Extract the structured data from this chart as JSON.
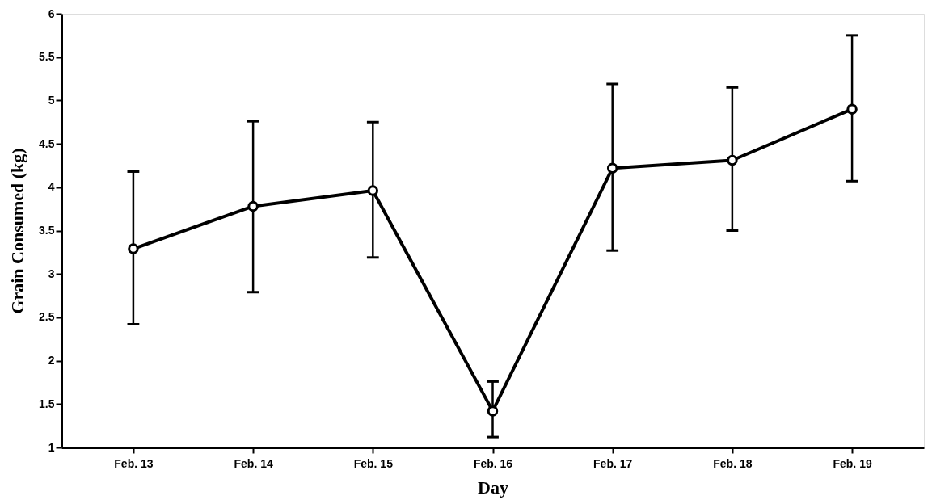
{
  "chart_data": {
    "type": "line",
    "xlabel": "Day",
    "ylabel": "Grain Consumed (kg)",
    "categories": [
      "Feb. 13",
      "Feb. 14",
      "Feb. 15",
      "Feb. 16",
      "Feb. 17",
      "Feb. 18",
      "Feb. 19"
    ],
    "series": [
      {
        "color": "#000000",
        "values": [
          3.29,
          3.78,
          3.96,
          1.42,
          4.22,
          4.31,
          4.9
        ],
        "errors": [
          [
            2.42,
            4.18
          ],
          [
            2.79,
            4.76
          ],
          [
            3.19,
            4.75
          ],
          [
            1.12,
            1.76
          ],
          [
            3.27,
            5.19
          ],
          [
            3.5,
            5.15
          ],
          [
            4.07,
            5.75
          ]
        ]
      }
    ],
    "ylim": [
      1,
      6
    ],
    "yticks": [
      1,
      1.5,
      2,
      2.5,
      3,
      3.5,
      4,
      4.5,
      5,
      5.5,
      6
    ],
    "marker": "circle",
    "line_style": "solid"
  }
}
